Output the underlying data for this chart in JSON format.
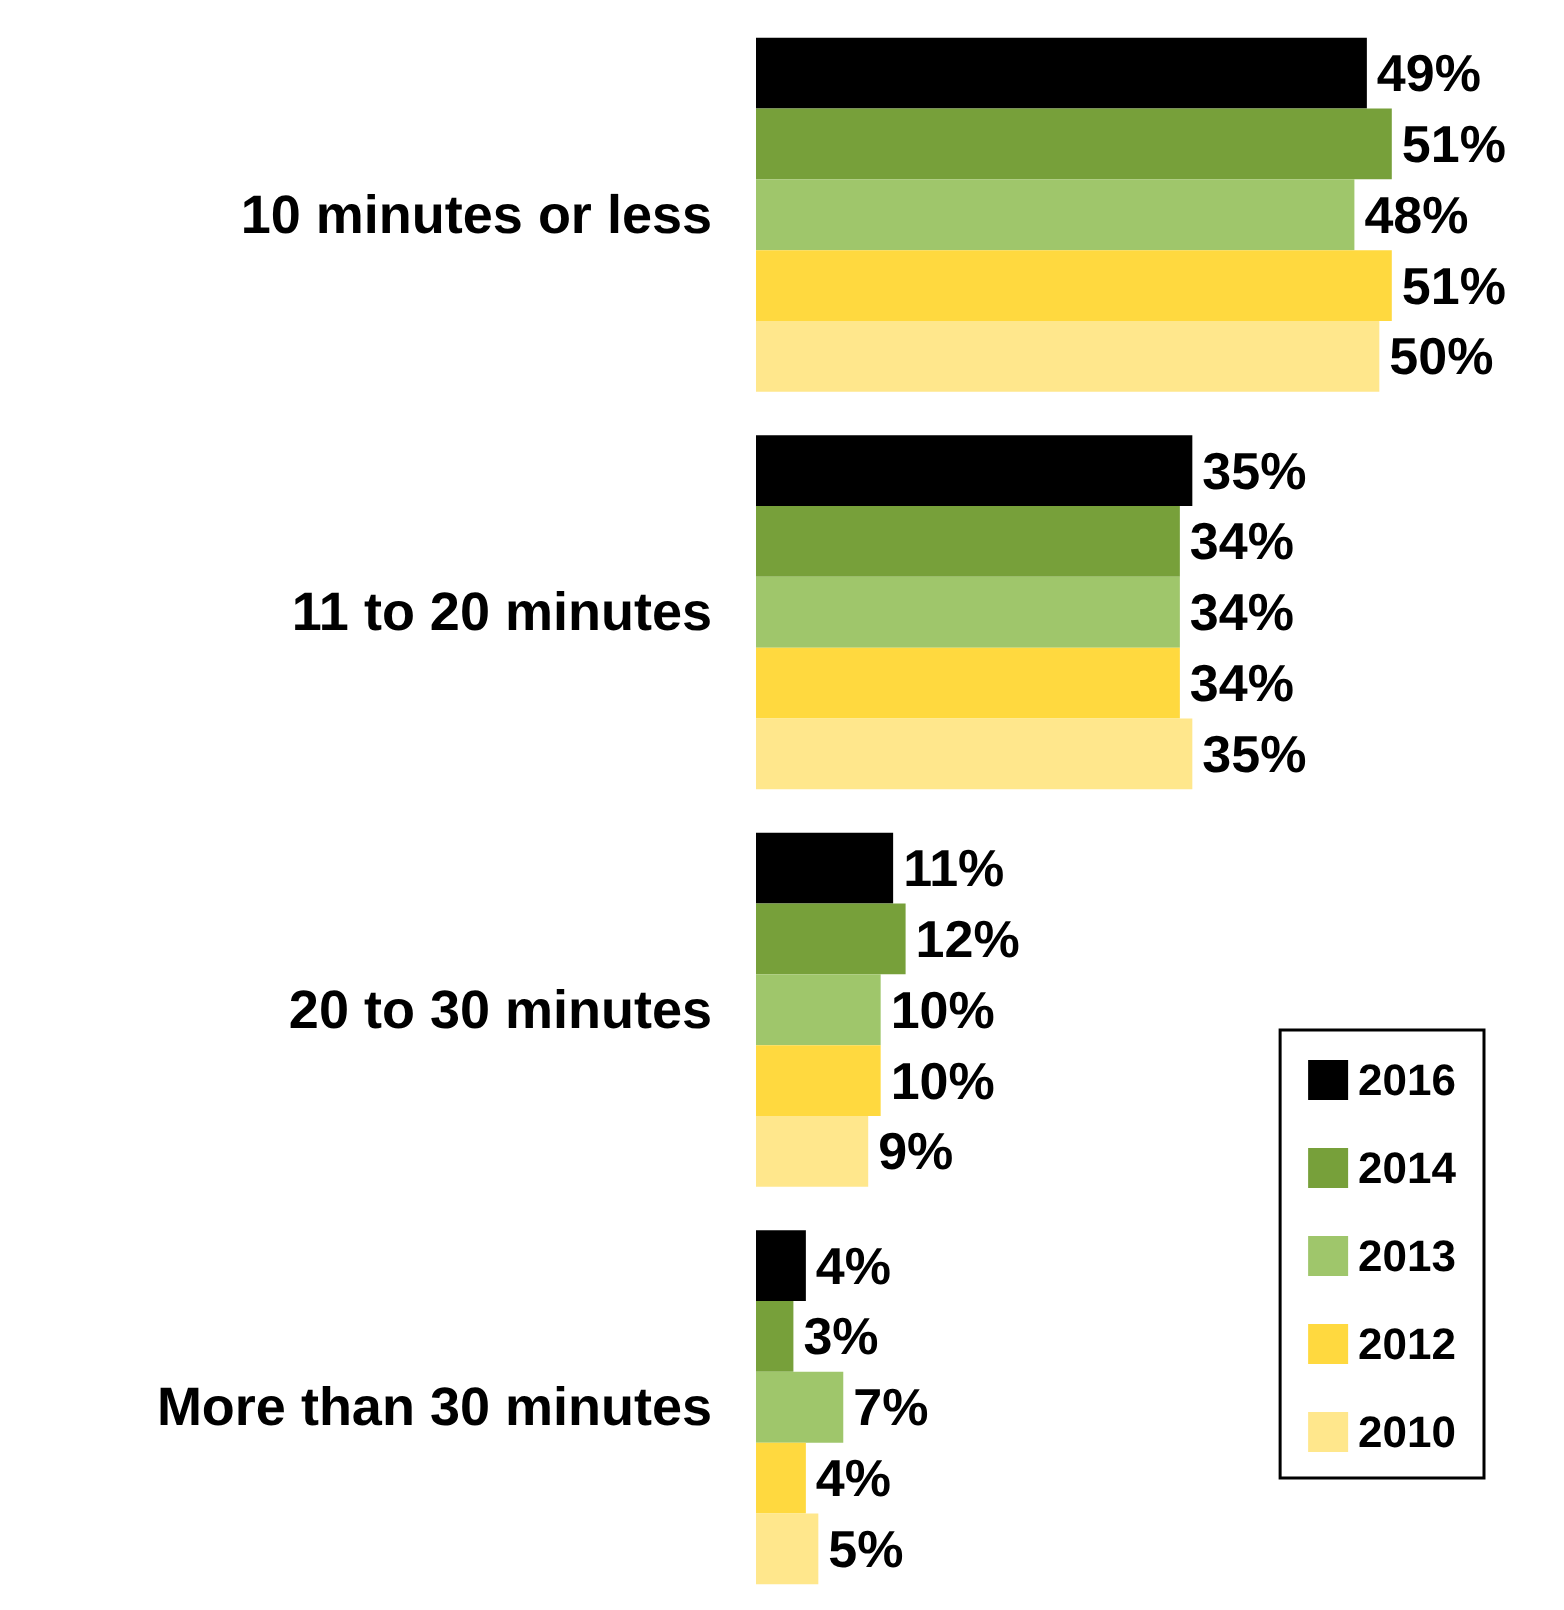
{
  "chart_data": {
    "type": "bar",
    "orientation": "horizontal",
    "categories": [
      "10 minutes or less",
      "11 to 20 minutes",
      "20 to 30 minutes",
      "More than 30 minutes"
    ],
    "series": [
      {
        "name": "2016",
        "color": "#000000",
        "values": [
          49,
          35,
          11,
          4
        ],
        "value_labels": [
          "49%",
          "35%",
          "11%",
          "4%"
        ]
      },
      {
        "name": "2014",
        "color": "#77a03a",
        "values": [
          51,
          34,
          12,
          3
        ],
        "value_labels": [
          "51%",
          "34%",
          "12%",
          "3%"
        ]
      },
      {
        "name": "2013",
        "color": "#9fc66b",
        "values": [
          48,
          34,
          10,
          7
        ],
        "value_labels": [
          "48%",
          "34%",
          "10%",
          "7%"
        ]
      },
      {
        "name": "2012",
        "color": "#ffd93f",
        "values": [
          51,
          34,
          10,
          4
        ],
        "value_labels": [
          "51%",
          "34%",
          "10%",
          "4%"
        ]
      },
      {
        "name": "2010",
        "color": "#ffe78c",
        "values": [
          50,
          35,
          9,
          5
        ],
        "value_labels": [
          "50%",
          "35%",
          "9%",
          "5%"
        ]
      }
    ],
    "legend": "bottom right"
  }
}
